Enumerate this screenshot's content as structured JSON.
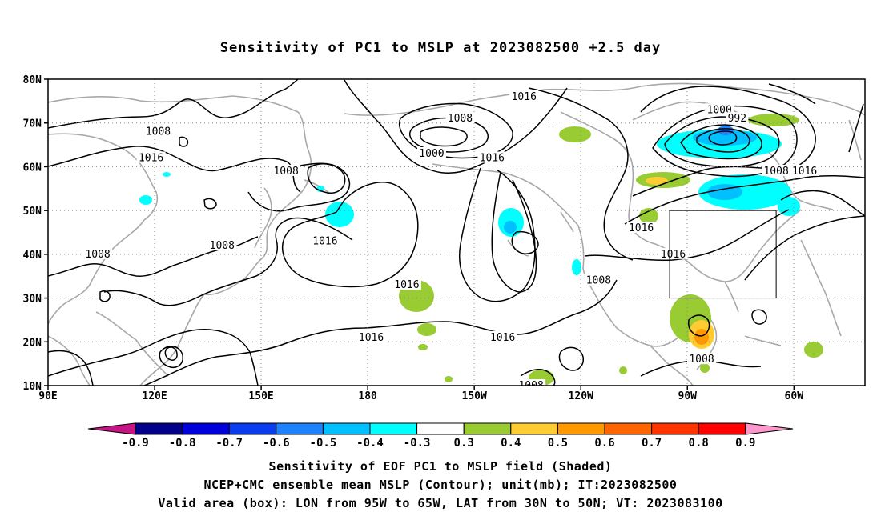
{
  "title": "Sensitivity of PC1 to MSLP at 2023082500 +2.5 day",
  "map": {
    "lat_range": [
      10,
      80
    ],
    "lon_range_east": [
      90,
      320
    ],
    "lat_ticks": [
      "80N",
      "70N",
      "60N",
      "50N",
      "40N",
      "30N",
      "20N",
      "10N"
    ],
    "lon_ticks": [
      "90E",
      "120E",
      "150E",
      "180",
      "150W",
      "120W",
      "90W",
      "60W"
    ],
    "grid": "dotted",
    "contour_labels": [
      {
        "text": "1008",
        "lon": 121,
        "lat": 68
      },
      {
        "text": "1016",
        "lon": 119,
        "lat": 62
      },
      {
        "text": "1008",
        "lon": 157,
        "lat": 59
      },
      {
        "text": "1008",
        "lon": 104,
        "lat": 40
      },
      {
        "text": "1008",
        "lon": 139,
        "lat": 42
      },
      {
        "text": "1016",
        "lon": 168,
        "lat": 43
      },
      {
        "text": "1008",
        "lon": 206,
        "lat": 71
      },
      {
        "text": "1000",
        "lon": 198,
        "lat": 63
      },
      {
        "text": "1016",
        "lon": 215,
        "lat": 62
      },
      {
        "text": "1016",
        "lon": 224,
        "lat": 76
      },
      {
        "text": "1016",
        "lon": 191,
        "lat": 33
      },
      {
        "text": "1016",
        "lon": 181,
        "lat": 21
      },
      {
        "text": "1016",
        "lon": 218,
        "lat": 21
      },
      {
        "text": "1008",
        "lon": 226,
        "lat": 10
      },
      {
        "text": "1000",
        "lon": 279,
        "lat": 73
      },
      {
        "text": "992",
        "lon": 284,
        "lat": 71
      },
      {
        "text": "1008",
        "lon": 295,
        "lat": 59
      },
      {
        "text": "1016",
        "lon": 303,
        "lat": 59
      },
      {
        "text": "1016",
        "lon": 257,
        "lat": 46
      },
      {
        "text": "1016",
        "lon": 266,
        "lat": 40
      },
      {
        "text": "1008",
        "lon": 245,
        "lat": 34
      },
      {
        "text": "1008",
        "lon": 274,
        "lat": 16
      }
    ],
    "valid_box": {
      "lon_west": -95,
      "lon_east": -65,
      "lat_south": 30,
      "lat_north": 50
    }
  },
  "colorbar": {
    "labels": [
      "-0.9",
      "-0.8",
      "-0.7",
      "-0.6",
      "-0.5",
      "-0.4",
      "-0.3",
      "0.3",
      "0.4",
      "0.5",
      "0.6",
      "0.7",
      "0.8",
      "0.9"
    ],
    "colors": [
      "#c71585",
      "#00008b",
      "#0000dc",
      "#0a3cf0",
      "#1e82ff",
      "#00c0ff",
      "#00ffff",
      "#ffffff",
      "#99cc33",
      "#ffcc33",
      "#ff9900",
      "#ff6600",
      "#ff3300",
      "#ff0000",
      "#ff99cc"
    ]
  },
  "shading": [
    {
      "level": 0.3,
      "color": "#99cc33"
    },
    {
      "level": 0.5,
      "color": "#ffcc33"
    },
    {
      "level": 0.6,
      "color": "#ff9900"
    },
    {
      "level": -0.3,
      "color": "#00ffff"
    },
    {
      "level": -0.4,
      "color": "#00c0ff"
    },
    {
      "level": -0.5,
      "color": "#1e82ff"
    }
  ],
  "captions": {
    "line1": "Sensitivity of EOF PC1 to MSLP field (Shaded)",
    "line2": "NCEP+CMC ensemble mean MSLP (Contour); unit(mb); IT:2023082500",
    "line3": "Valid area (box): LON from 95W to 65W, LAT from 30N to 50N; VT: 2023083100"
  }
}
